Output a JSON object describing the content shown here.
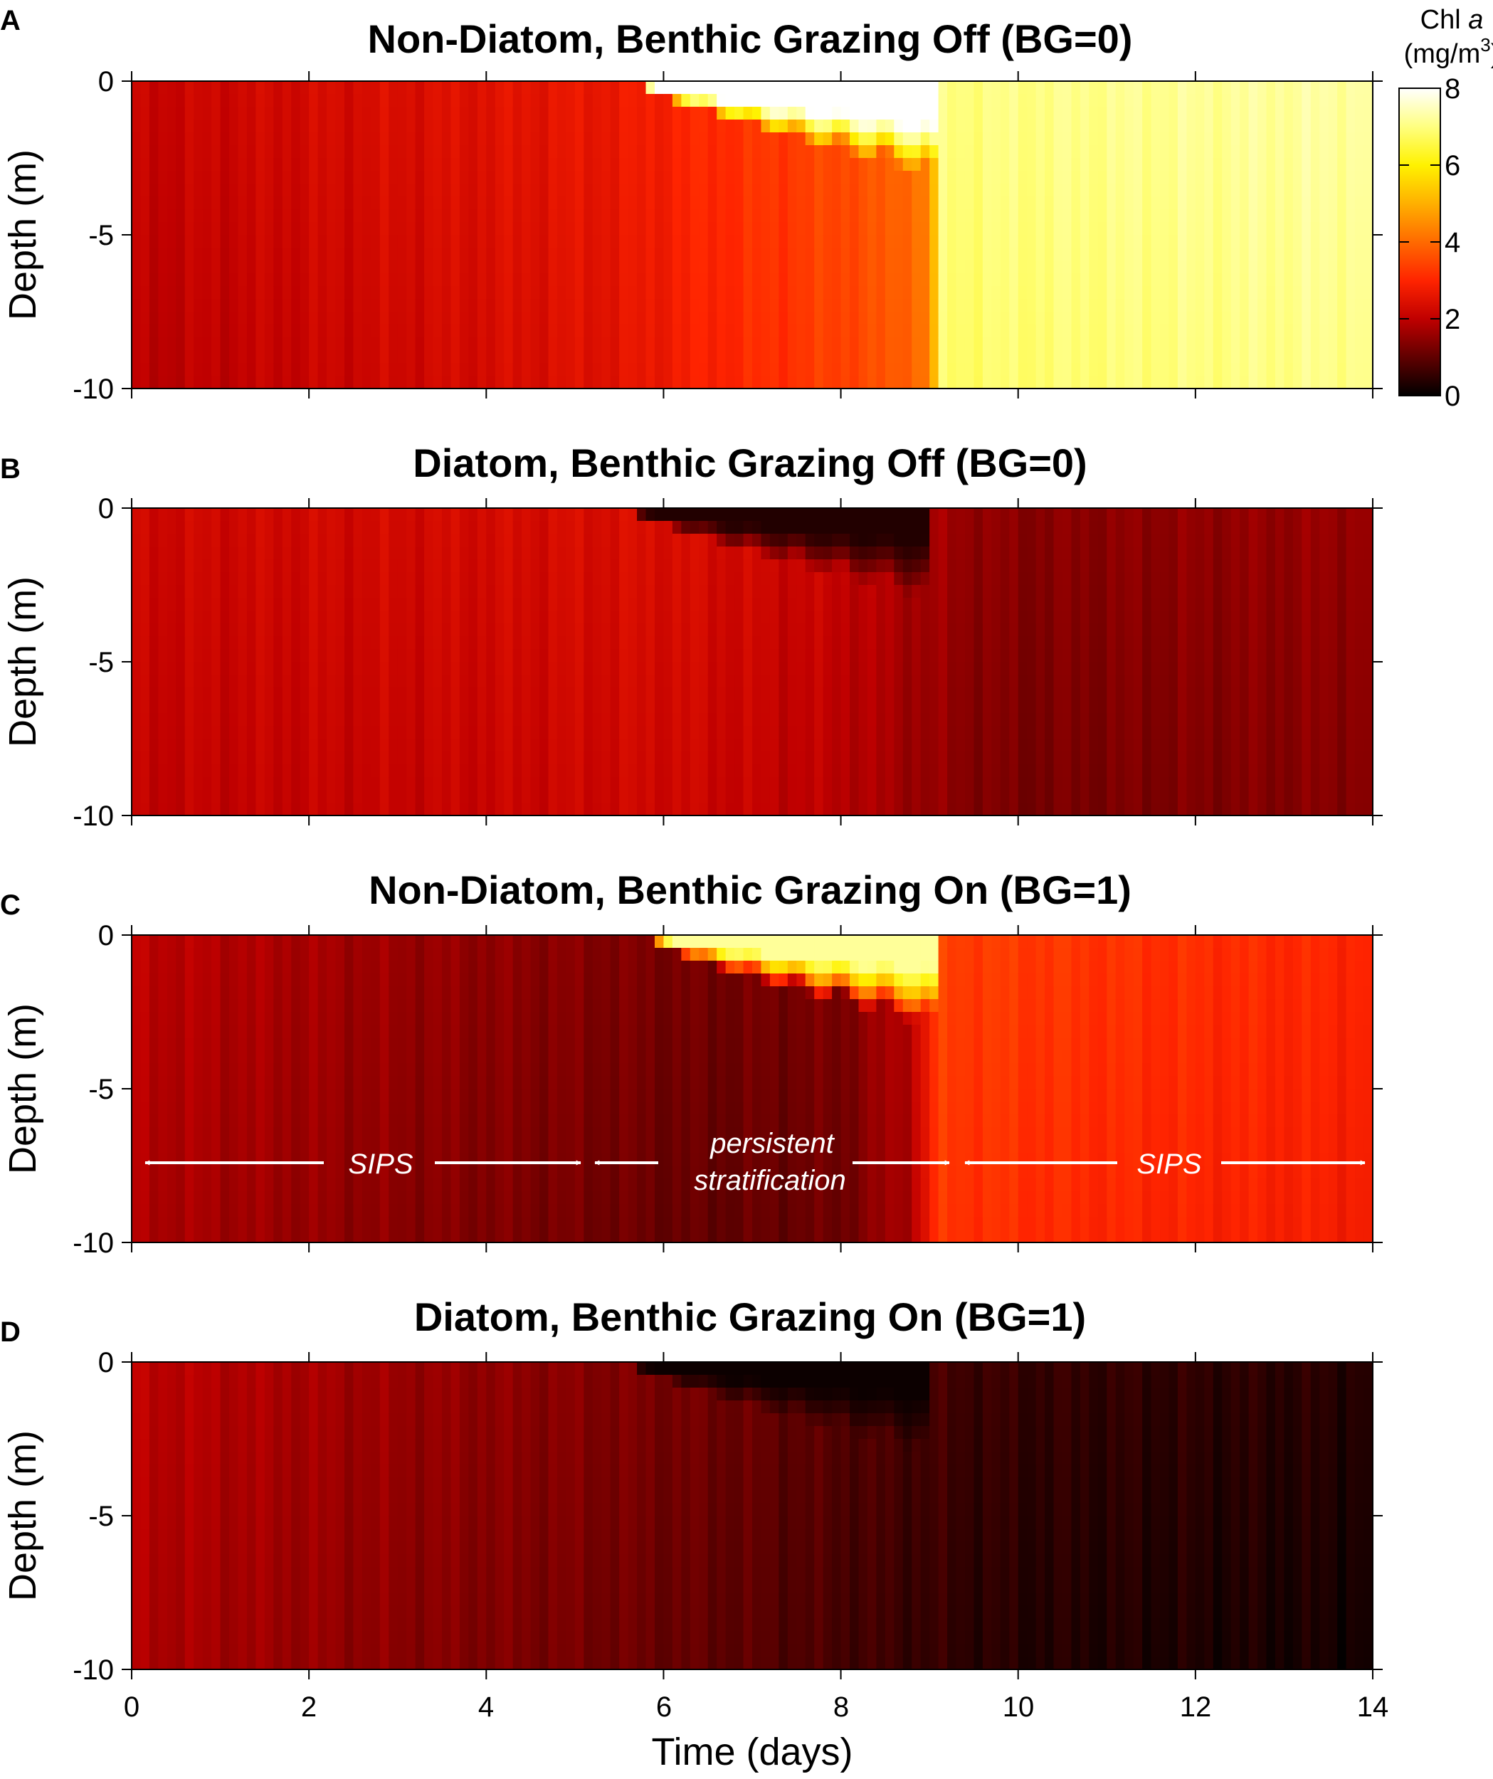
{
  "chart_data": [
    {
      "panel_letter": "A",
      "title": "Non-Diatom, Benthic Grazing Off (BG=0)",
      "type": "heatmap",
      "xlabel": "",
      "ylabel": "Depth (m)",
      "xlim": [
        0,
        14
      ],
      "ylim": [
        -10,
        0
      ],
      "yticks": [
        "0",
        "-5",
        "-10"
      ],
      "xticks": [
        0,
        2,
        4,
        6,
        8,
        10,
        12,
        14
      ],
      "colorbar": {
        "title_prefix": "Chl ",
        "title_italic": "a",
        "units": "(mg/m",
        "units_sup": "3",
        "units_close": ")",
        "range": [
          0,
          8
        ],
        "ticks": [
          "0",
          "2",
          "4",
          "6",
          "8"
        ]
      },
      "model": {
        "base_by_day": [
          [
            0,
            2.1
          ],
          [
            2,
            2.3
          ],
          [
            4,
            2.5
          ],
          [
            5.5,
            2.7
          ],
          [
            6.5,
            3.1
          ],
          [
            7.5,
            3.4
          ],
          [
            8.5,
            3.8
          ],
          [
            9.0,
            4.4
          ],
          [
            9.15,
            7.0
          ],
          [
            14,
            7.3
          ]
        ],
        "surface_feature": {
          "kind": "bloom",
          "value": 8.5,
          "window": [
            5.7,
            9.05
          ],
          "max_depth": 3.2
        }
      }
    },
    {
      "panel_letter": "B",
      "title": "Diatom, Benthic Grazing Off (BG=0)",
      "type": "heatmap",
      "xlabel": "",
      "ylabel": "Depth (m)",
      "xlim": [
        0,
        14
      ],
      "ylim": [
        -10,
        0
      ],
      "yticks": [
        "0",
        "-5",
        "-10"
      ],
      "xticks": [
        0,
        2,
        4,
        6,
        8,
        10,
        12,
        14
      ],
      "model": {
        "base_by_day": [
          [
            0,
            2.2
          ],
          [
            4,
            2.3
          ],
          [
            6,
            2.4
          ],
          [
            8,
            2.1
          ],
          [
            9,
            1.7
          ],
          [
            10,
            1.4
          ],
          [
            14,
            1.6
          ]
        ],
        "surface_feature": {
          "kind": "depletion",
          "value": 0.35,
          "window": [
            5.6,
            9.0
          ],
          "max_depth": 3.0
        }
      }
    },
    {
      "panel_letter": "C",
      "title": "Non-Diatom, Benthic Grazing On (BG=1)",
      "type": "heatmap",
      "xlabel": "",
      "ylabel": "Depth (m)",
      "xlim": [
        0,
        14
      ],
      "ylim": [
        -10,
        0
      ],
      "yticks": [
        "0",
        "-5",
        "-10"
      ],
      "xticks": [
        0,
        2,
        4,
        6,
        8,
        10,
        12,
        14
      ],
      "model": {
        "base_by_day": [
          [
            0,
            2.0
          ],
          [
            3,
            1.6
          ],
          [
            5,
            1.4
          ],
          [
            6.5,
            1.2
          ],
          [
            8,
            1.3
          ],
          [
            8.8,
            2.0
          ],
          [
            9.1,
            3.4
          ],
          [
            11,
            3.2
          ],
          [
            14,
            3.0
          ]
        ],
        "surface_feature": {
          "kind": "bloom",
          "value": 7.2,
          "window": [
            5.8,
            9.05
          ],
          "max_depth": 3.0
        }
      },
      "annotations": [
        {
          "text": "SIPS",
          "lines": [
            "SIPS"
          ],
          "x_range": [
            0.1,
            5.05
          ]
        },
        {
          "text": "persistent stratification",
          "lines": [
            "persistent",
            "stratification"
          ],
          "x_range": [
            5.2,
            9.25
          ]
        },
        {
          "text": "SIPS",
          "lines": [
            "SIPS"
          ],
          "x_range": [
            9.4,
            13.95
          ]
        }
      ]
    },
    {
      "panel_letter": "D",
      "title": "Diatom, Benthic Grazing On (BG=1)",
      "type": "heatmap",
      "xlabel": "Time (days)",
      "ylabel": "Depth (m)",
      "xlim": [
        0,
        14
      ],
      "ylim": [
        -10,
        0
      ],
      "yticks": [
        "0",
        "-5",
        "-10"
      ],
      "xticks": [
        0,
        2,
        4,
        6,
        8,
        10,
        12,
        14
      ],
      "xticklabels": [
        "0",
        "2",
        "4",
        "6",
        "8",
        "10",
        "12",
        "14"
      ],
      "model": {
        "base_by_day": [
          [
            0,
            2.0
          ],
          [
            3,
            1.6
          ],
          [
            5,
            1.4
          ],
          [
            7,
            1.1
          ],
          [
            8.5,
            0.8
          ],
          [
            10,
            0.55
          ],
          [
            14,
            0.4
          ]
        ],
        "surface_feature": {
          "kind": "depletion",
          "value": 0.12,
          "window": [
            5.6,
            9.0
          ],
          "max_depth": 3.0
        }
      }
    }
  ]
}
